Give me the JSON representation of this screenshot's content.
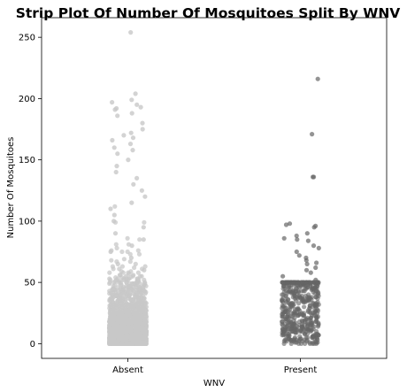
{
  "chart_data": {
    "type": "strip",
    "title": "Strip Plot Of Number Of Mosquitoes Split By WNV",
    "xlabel": "WNV",
    "ylabel": "Number Of Mosquitoes",
    "categories": [
      "Absent",
      "Present"
    ],
    "ylim": [
      -12,
      266
    ],
    "yticks": [
      0,
      50,
      100,
      150,
      200,
      250
    ],
    "grid": false,
    "legend": "none",
    "colors": {
      "Absent": "#c8c8c8",
      "Present": "#666666"
    },
    "series": [
      {
        "category": "Absent",
        "max_value": 254,
        "notable_values": [
          254,
          204,
          199,
          197,
          195,
          193,
          192,
          191,
          188,
          186,
          180,
          175,
          172,
          170,
          168,
          166,
          163,
          160,
          158,
          155,
          150,
          145,
          140,
          135,
          130,
          125,
          120,
          115,
          110,
          105,
          100,
          95,
          90,
          85,
          80,
          75,
          70,
          65,
          60,
          55,
          50
        ]
      },
      {
        "category": "Present",
        "max_value": 216,
        "notable_values": [
          216,
          171,
          136,
          136,
          98,
          97,
          96,
          95,
          90,
          88,
          86,
          85,
          84,
          80,
          78,
          75,
          72,
          70,
          68,
          66,
          65,
          62,
          60,
          58,
          55,
          52,
          50
        ]
      }
    ]
  }
}
